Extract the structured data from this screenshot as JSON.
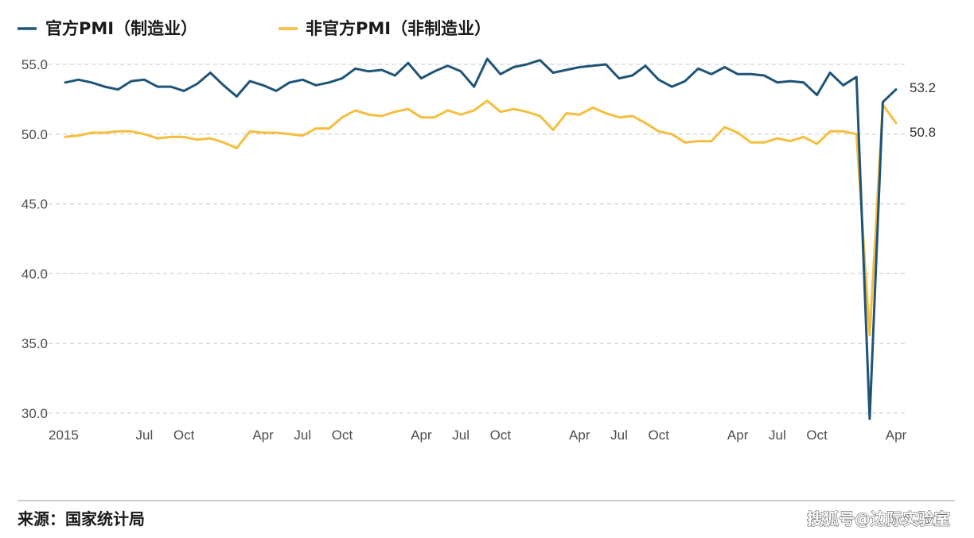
{
  "chart_data": {
    "type": "line",
    "title": "",
    "xlabel": "",
    "ylabel": "",
    "ylim": [
      29.5,
      56.0
    ],
    "yticks": [
      "55.0",
      "50.0",
      "45.0",
      "40.0",
      "35.0",
      "30.0"
    ],
    "y_tick_values": [
      55,
      50,
      45,
      40,
      35,
      30
    ],
    "grid": "horizontal dashed",
    "legend_position": "top-left",
    "x_start": "2015-01",
    "x_end": "2020-04",
    "x_tick_labels": [
      {
        "label": "2015",
        "date": "2015-01"
      },
      {
        "label": "Jul",
        "date": "2015-07"
      },
      {
        "label": "Oct",
        "date": "2015-10"
      },
      {
        "label": "Apr",
        "date": "2016-04"
      },
      {
        "label": "Jul",
        "date": "2016-07"
      },
      {
        "label": "Oct",
        "date": "2016-10"
      },
      {
        "label": "Apr",
        "date": "2017-04"
      },
      {
        "label": "Jul",
        "date": "2017-07"
      },
      {
        "label": "Oct",
        "date": "2017-10"
      },
      {
        "label": "Apr",
        "date": "2018-04"
      },
      {
        "label": "Jul",
        "date": "2018-07"
      },
      {
        "label": "Oct",
        "date": "2018-10"
      },
      {
        "label": "Apr",
        "date": "2019-04"
      },
      {
        "label": "Jul",
        "date": "2019-07"
      },
      {
        "label": "Oct",
        "date": "2019-10"
      },
      {
        "label": "Apr",
        "date": "2020-04"
      }
    ],
    "series": [
      {
        "name": "官方PMI（制造业）",
        "color": "#1f5478",
        "end_label": "53.2",
        "values": [
          53.7,
          53.9,
          53.7,
          53.4,
          53.2,
          53.8,
          53.9,
          53.4,
          53.4,
          53.1,
          53.6,
          54.4,
          53.5,
          52.7,
          53.8,
          53.5,
          53.1,
          53.7,
          53.9,
          53.5,
          53.7,
          54.0,
          54.7,
          54.5,
          54.6,
          54.2,
          55.1,
          54.0,
          54.5,
          54.9,
          54.5,
          53.4,
          55.4,
          54.3,
          54.8,
          55.0,
          55.3,
          54.4,
          54.6,
          54.8,
          54.9,
          55.0,
          54.0,
          54.2,
          54.9,
          53.9,
          53.4,
          53.8,
          54.7,
          54.3,
          54.8,
          54.3,
          54.3,
          54.2,
          53.7,
          53.8,
          53.7,
          52.8,
          54.4,
          53.5,
          54.1,
          29.6,
          52.3,
          53.2
        ]
      },
      {
        "name": "非官方PMI（非制造业）",
        "color": "#f5be3e",
        "end_label": "50.8",
        "values": [
          49.8,
          49.9,
          50.1,
          50.1,
          50.2,
          50.2,
          50.0,
          49.7,
          49.8,
          49.8,
          49.6,
          49.7,
          49.4,
          49.0,
          50.2,
          50.1,
          50.1,
          50.0,
          49.9,
          50.4,
          50.4,
          51.2,
          51.7,
          51.4,
          51.3,
          51.6,
          51.8,
          51.2,
          51.2,
          51.7,
          51.4,
          51.7,
          52.4,
          51.6,
          51.8,
          51.6,
          51.3,
          50.3,
          51.5,
          51.4,
          51.9,
          51.5,
          51.2,
          51.3,
          50.8,
          50.2,
          50.0,
          49.4,
          49.5,
          49.5,
          50.5,
          50.1,
          49.4,
          49.4,
          49.7,
          49.5,
          49.8,
          49.3,
          50.2,
          50.2,
          50.0,
          35.6,
          52.1,
          50.8
        ]
      }
    ]
  },
  "footer": {
    "source": "来源：国家统计局",
    "watermark": "搜狐号@边际实验室"
  }
}
